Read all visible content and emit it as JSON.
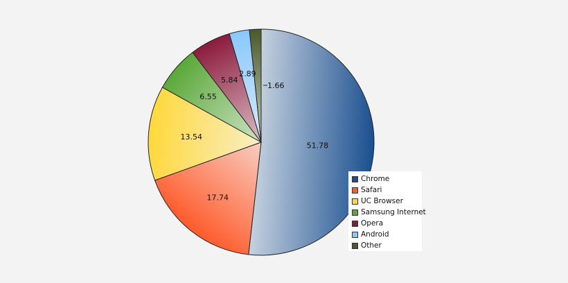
{
  "chart_data": {
    "type": "pie",
    "title": "",
    "slices": [
      {
        "label": "Chrome",
        "value": 51.78,
        "value_label": "51.78",
        "color": "#1a4f8f"
      },
      {
        "label": "Safari",
        "value": 17.74,
        "value_label": "17.74",
        "color": "#ff5a2a"
      },
      {
        "label": "UC Browser",
        "value": 13.54,
        "value_label": "13.54",
        "color": "#ffd83a"
      },
      {
        "label": "Samsung Internet",
        "value": 6.55,
        "value_label": "6.55",
        "color": "#5aa838"
      },
      {
        "label": "Opera",
        "value": 5.84,
        "value_label": "5.84",
        "color": "#8c1a3c"
      },
      {
        "label": "Android",
        "value": 2.89,
        "value_label": "2.89",
        "color": "#88c8ff"
      },
      {
        "label": "Other",
        "value": 1.66,
        "value_label": "1.66",
        "color": "#4a5a2a"
      }
    ],
    "legend_position": "bottom-right",
    "start_angle": "12 o'clock",
    "direction": "clockwise"
  }
}
